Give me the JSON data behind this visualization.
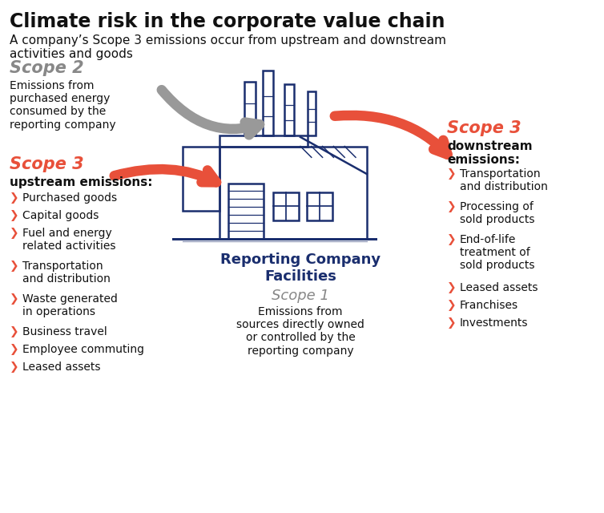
{
  "title": "Climate risk in the corporate value chain",
  "subtitle": "A company’s Scope 3 emissions occur from upstream and downstream\nactivities and goods",
  "title_color": "#111111",
  "subtitle_color": "#111111",
  "scope2_label": "Scope 2",
  "scope2_desc": "Emissions from\npurchased energy\nconsumed by the\nreporting company",
  "scope2_color": "#888888",
  "scope1_label": "Scope 1",
  "scope1_desc": "Emissions from\nsources directly owned\nor controlled by the\nreporting company",
  "scope1_label_color": "#888888",
  "center_label": "Reporting Company\nFacilities",
  "center_color": "#1a2e6e",
  "scope3_up_label": "Scope 3",
  "scope3_up_sub": "upstream emissions:",
  "scope3_up_items": [
    "Purchased goods",
    "Capital goods",
    "Fuel and energy\nrelated activities",
    "Transportation\nand distribution",
    "Waste generated\nin operations",
    "Business travel",
    "Employee commuting",
    "Leased assets"
  ],
  "scope3_down_label": "Scope 3",
  "scope3_down_sub": "downstream\nemissions:",
  "scope3_down_items": [
    "Transportation\nand distribution",
    "Processing of\nsold products",
    "End-of-life\ntreatment of\nsold products",
    "Leased assets",
    "Franchises",
    "Investments"
  ],
  "red_color": "#e8503a",
  "dark_blue": "#1a2e6e",
  "black": "#111111",
  "bg_color": "#ffffff"
}
